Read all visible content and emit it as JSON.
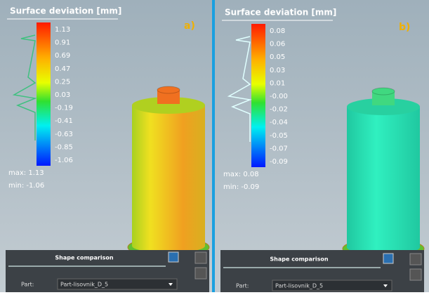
{
  "panels": [
    {
      "title": "Surface deviation [mm]",
      "label": "a)",
      "scale": [
        "1.13",
        "0.91",
        "0.69",
        "0.47",
        "0.25",
        "0.03",
        "-0.19",
        "-0.41",
        "-0.63",
        "-0.85",
        "-1.06"
      ],
      "max": "max:  1.13",
      "min": "min:  -1.06",
      "toolbar": {
        "title": "Shape comparison",
        "part_label": "Part:",
        "part_value": "Part-lisovnik_D_5"
      }
    },
    {
      "title": "Surface deviation [mm]",
      "label": "b)",
      "scale": [
        "0.08",
        "0.06",
        "0.05",
        "0.03",
        "0.01",
        "-0.00",
        "-0.02",
        "-0.04",
        "-0.05",
        "-0.07",
        "-0.09"
      ],
      "max": "max:  0.08",
      "min": "min:  -0.09",
      "toolbar": {
        "title": "Shape comparison",
        "part_label": "Part:",
        "part_value": "Part-lisovnik_D_5"
      }
    }
  ]
}
